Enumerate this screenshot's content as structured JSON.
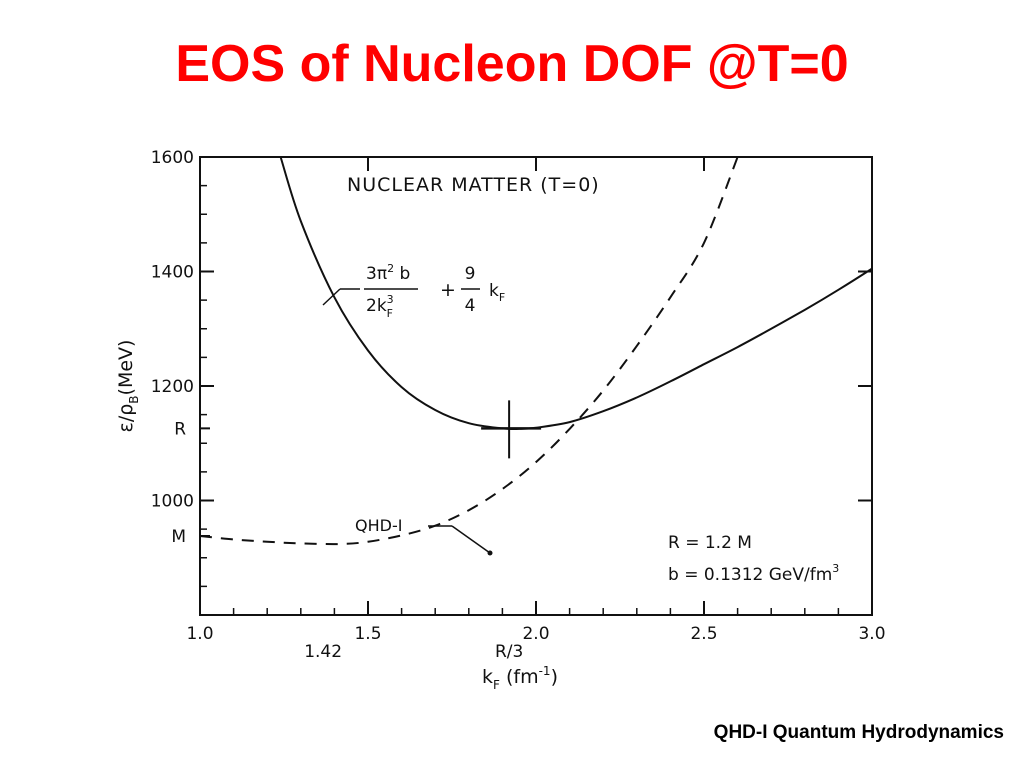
{
  "slide": {
    "title": "EOS of Nucleon DOF @T=0",
    "caption": "QHD-I Quantum Hydrodynamics",
    "title_color": "#ff0000"
  },
  "chart_data": {
    "type": "line",
    "title": "NUCLEAR MATTER (T=0)",
    "xlabel": "k",
    "xlabel_sub": "F",
    "xlabel_unit_pre": "(fm",
    "xlabel_unit_sup": "-1",
    "xlabel_unit_post": ")",
    "ylabel_prefix": "ε/ρ",
    "ylabel_sub": "B",
    "ylabel_unit": "(MeV)",
    "xlim": [
      1.0,
      3.0
    ],
    "ylim": [
      800,
      1600
    ],
    "xticks": [
      {
        "v": 1.0,
        "label": "1.0"
      },
      {
        "v": 1.5,
        "label": "1.5"
      },
      {
        "v": 2.0,
        "label": "2.0"
      },
      {
        "v": 2.5,
        "label": "2.5"
      },
      {
        "v": 3.0,
        "label": "3.0"
      }
    ],
    "yticks": [
      {
        "v": 1000,
        "label": "1000"
      },
      {
        "v": 1200,
        "label": "1200"
      },
      {
        "v": 1400,
        "label": "1400"
      },
      {
        "v": 1600,
        "label": "1600"
      }
    ],
    "special_xticks": [
      {
        "v": 1.42,
        "label": "1.42"
      },
      {
        "v": 1.92,
        "label": "R/3"
      }
    ],
    "special_yticks": [
      {
        "v": 938,
        "label": "M"
      },
      {
        "v": 1126,
        "label": "R"
      }
    ],
    "series": [
      {
        "style": "solid",
        "x": [
          1.24,
          1.3,
          1.4,
          1.5,
          1.6,
          1.7,
          1.8,
          1.9,
          1.95,
          2.0,
          2.1,
          2.2,
          2.3,
          2.4,
          2.5,
          2.6,
          2.7,
          2.8,
          2.9,
          3.0
        ],
        "y": [
          1600,
          1488,
          1355,
          1262,
          1198,
          1158,
          1135,
          1126,
          1125,
          1127,
          1137,
          1156,
          1180,
          1208,
          1238,
          1268,
          1300,
          1333,
          1368,
          1405
        ]
      },
      {
        "style": "dashed",
        "x": [
          1.0,
          1.1,
          1.2,
          1.3,
          1.42,
          1.5,
          1.6,
          1.7,
          1.8,
          1.9,
          2.0,
          2.1,
          2.2,
          2.3,
          2.4,
          2.5,
          2.6
        ],
        "y": [
          938,
          932,
          928,
          925,
          924,
          928,
          939,
          956,
          983,
          1020,
          1067,
          1125,
          1192,
          1270,
          1355,
          1450,
          1600
        ]
      }
    ],
    "annotations": {
      "solid_formula": {
        "num1": "3π",
        "num1_sup": "2",
        "num1_tail": " b",
        "den1": "2k",
        "den1_sup": "3",
        "den1_sub": "F",
        "plus": "+",
        "num2": "9",
        "den2": "4",
        "tail": "k",
        "tail_sub": "F"
      },
      "dashed_label": "QHD-I",
      "params": [
        "R = 1.2 M",
        "b = 0.1312 GeV/fm"
      ],
      "params_sup": "3"
    },
    "marker": {
      "x": 1.92,
      "y": 1126
    }
  }
}
